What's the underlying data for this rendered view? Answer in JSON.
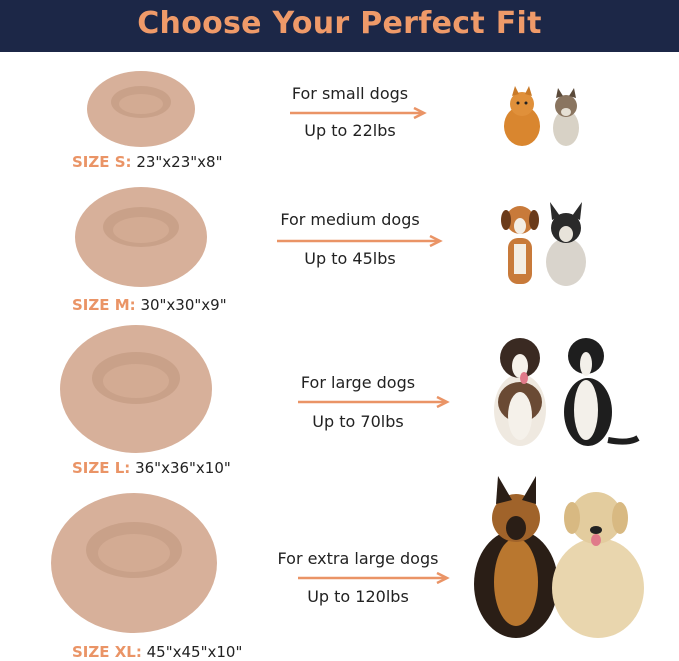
{
  "header": {
    "title": "Choose Your Perfect Fit"
  },
  "colors": {
    "header_bg": "#1c2747",
    "accent": "#ef9a69",
    "bed": "#d9b39c"
  },
  "sizes": [
    {
      "label": "SIZE S:",
      "dims": "23\"x23\"x8\"",
      "for": "For small dogs",
      "weight": "Up to 22lbs"
    },
    {
      "label": "SIZE M:",
      "dims": "30\"x30\"x9\"",
      "for": "For medium dogs",
      "weight": "Up to 45lbs"
    },
    {
      "label": "SIZE L:",
      "dims": "36\"x36\"x10\"",
      "for": "For large dogs",
      "weight": "Up to 70lbs"
    },
    {
      "label": "SIZE XL:",
      "dims": "45\"x45\"x10\"",
      "for": "For extra large dogs",
      "weight": "Up to 120lbs"
    }
  ]
}
